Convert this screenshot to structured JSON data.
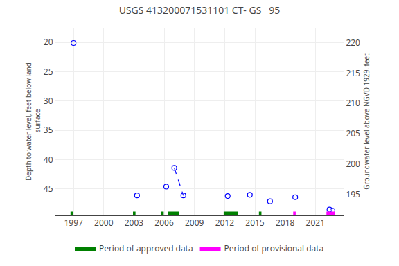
{
  "chart_data": {
    "type": "scatter",
    "title": "USGS 413200071531101 CT- GS   95",
    "ylabel": "Depth to water level, feet below land\n surface",
    "y2label": "Groundwater level above NGVD 1929, feet",
    "xlim": [
      1995.2,
      2023.8
    ],
    "xticks": [
      1997,
      2000,
      2003,
      2006,
      2009,
      2012,
      2015,
      2018,
      2021
    ],
    "ylim": [
      49.5,
      17.5
    ],
    "yticks": [
      20,
      25,
      30,
      35,
      40,
      45
    ],
    "y2lim": [
      191.5,
      222.5
    ],
    "y2ticks": [
      220,
      215,
      210,
      205,
      200,
      195
    ],
    "grid": true,
    "legend": "bottom",
    "series": [
      {
        "type": "scatter",
        "marker": "open_circle",
        "color": "blue",
        "x": [
          1997.0,
          2003.3,
          2006.2,
          2007.0,
          2007.9,
          2012.3,
          2014.5,
          2016.5,
          2019.0,
          2022.4,
          2022.7
        ],
        "values": [
          20.1,
          46.1,
          44.6,
          41.4,
          46.1,
          46.2,
          46.0,
          47.1,
          46.4,
          48.5,
          48.7
        ]
      },
      {
        "type": "line",
        "line_style": "dashed",
        "color": "blue",
        "x": [
          2007.0,
          2007.9
        ],
        "values": [
          41.4,
          46.1
        ]
      },
      {
        "type": "span",
        "name": "Period of approved data",
        "color": "#008000",
        "x": [
          1996.7,
          2002.9,
          2005.7,
          2006.4,
          2011.9,
          2015.4
        ],
        "widths": [
          0.25,
          0.25,
          0.25,
          1.1,
          1.4,
          0.25
        ]
      },
      {
        "type": "span",
        "name": "Period of provisional data",
        "color": "#ff00ff",
        "x": [
          2018.8,
          2022.1
        ],
        "widths": [
          0.25,
          0.85
        ]
      }
    ]
  }
}
